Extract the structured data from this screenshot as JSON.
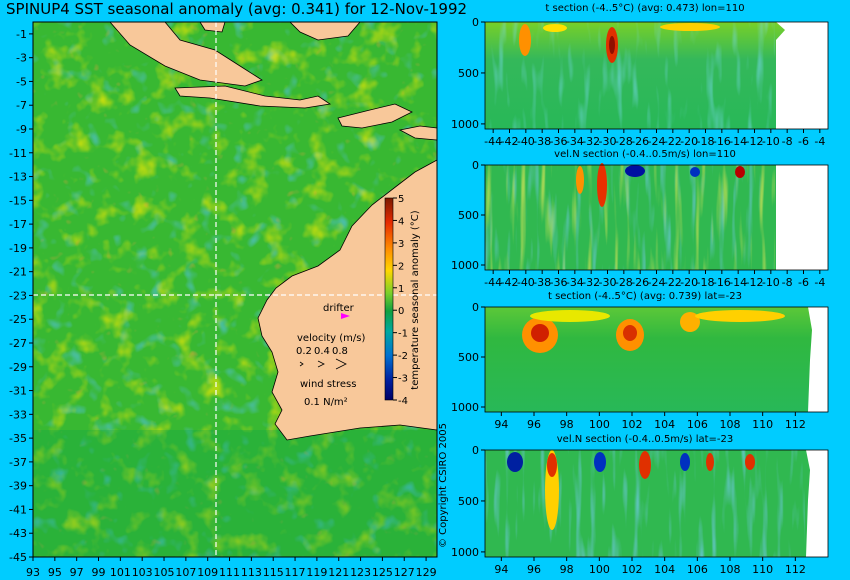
{
  "title": "SPINUP4 SST seasonal anomaly (avg: 0.341) for 12-Nov-1992",
  "copyright": "© Copyright CSIRO 2005",
  "colors": {
    "background": "#00ccff",
    "land": "#f8c89a",
    "drifter": "#ff00ff"
  },
  "map": {
    "lat_ticks": [
      "-1",
      "-3",
      "-5",
      "-7",
      "-9",
      "-11",
      "-13",
      "-15",
      "-17",
      "-19",
      "-21",
      "-23",
      "-25",
      "-27",
      "-29",
      "-31",
      "-33",
      "-35",
      "-37",
      "-39",
      "-41",
      "-43",
      "-45"
    ],
    "lon_ticks": [
      "93",
      "95",
      "97",
      "99",
      "101",
      "103",
      "105",
      "107",
      "109",
      "111",
      "113",
      "115",
      "117",
      "119",
      "121",
      "123",
      "125",
      "127",
      "129"
    ],
    "section_lat": -23,
    "section_lon": 110,
    "drifter_label": "drifter",
    "velocity_title": "velocity (m/s)",
    "velocity_scale": [
      "0.2",
      "0.4",
      "0.8"
    ],
    "wind_title": "wind stress",
    "wind_value": "0.1 N/m²"
  },
  "colorbar": {
    "label": "temperature seasonal anomaly (°C)",
    "ticks": [
      "5",
      "4",
      "3",
      "2",
      "1",
      "0",
      "-1",
      "-2",
      "-3",
      "-4"
    ]
  },
  "sections": [
    {
      "title": "t section (-4..5°C) (avg: 0.473) lon=110",
      "y_ticks": [
        "0",
        "500",
        "1000"
      ],
      "x_ticks": [
        "-44",
        "-42",
        "-40",
        "-38",
        "-36",
        "-34",
        "-32",
        "-30",
        "-28",
        "-26",
        "-24",
        "-22",
        "-20",
        "-18",
        "-16",
        "-14",
        "-12",
        "-10",
        "-8",
        "-6",
        "-4"
      ]
    },
    {
      "title": "vel.N section (-0.4..0.5m/s) lon=110",
      "y_ticks": [
        "0",
        "500",
        "1000"
      ],
      "x_ticks": [
        "-44",
        "-42",
        "-40",
        "-38",
        "-36",
        "-34",
        "-32",
        "-30",
        "-28",
        "-26",
        "-24",
        "-22",
        "-20",
        "-18",
        "-16",
        "-14",
        "-12",
        "-10",
        "-8",
        "-6",
        "-4"
      ]
    },
    {
      "title": "t section (-4..5°C) (avg: 0.739) lat=-23",
      "y_ticks": [
        "0",
        "500",
        "1000"
      ],
      "x_ticks": [
        "94",
        "96",
        "98",
        "100",
        "102",
        "104",
        "106",
        "108",
        "110",
        "112"
      ]
    },
    {
      "title": "vel.N section (-0.4..0.5m/s) lat=-23",
      "y_ticks": [
        "0",
        "500",
        "1000"
      ],
      "x_ticks": [
        "94",
        "96",
        "98",
        "100",
        "102",
        "104",
        "106",
        "108",
        "110",
        "112"
      ]
    }
  ],
  "chart_data": [
    {
      "type": "heatmap",
      "title": "SPINUP4 SST seasonal anomaly (avg: 0.341) for 12-Nov-1992",
      "xlabel": "",
      "ylabel": "",
      "xlim": [
        93,
        130
      ],
      "ylim": [
        -45,
        0
      ],
      "zlim": [
        -4,
        5
      ]
    },
    {
      "type": "heatmap",
      "title": "t section (-4..5°C) (avg: 0.473) lon=110",
      "xlim": [
        -45,
        -3
      ],
      "ylim": [
        1050,
        0
      ]
    },
    {
      "type": "heatmap",
      "title": "vel.N section (-0.4..0.5m/s) lon=110",
      "xlim": [
        -45,
        -3
      ],
      "ylim": [
        1050,
        0
      ]
    },
    {
      "type": "heatmap",
      "title": "t section (-4..5°C) (avg: 0.739) lat=-23",
      "xlim": [
        93,
        114
      ],
      "ylim": [
        1050,
        0
      ]
    },
    {
      "type": "heatmap",
      "title": "vel.N section (-0.4..0.5m/s) lat=-23",
      "xlim": [
        93,
        114
      ],
      "ylim": [
        1050,
        0
      ]
    }
  ]
}
